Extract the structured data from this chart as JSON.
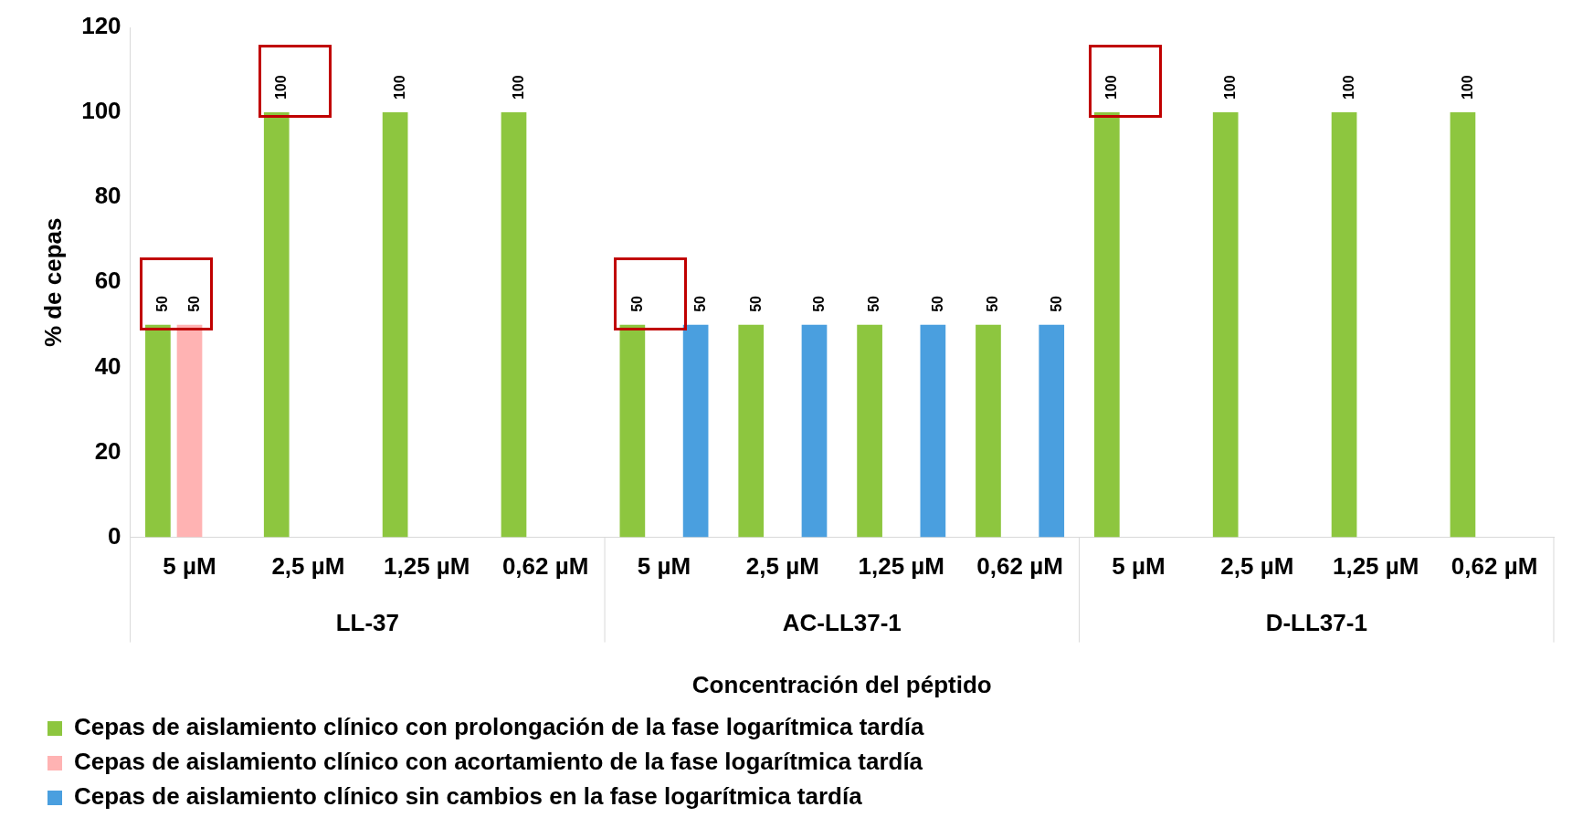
{
  "chart_data": {
    "type": "bar",
    "xlabel": "Concentración del péptido",
    "ylabel": "% de cepas",
    "categories": [
      "5 µM",
      "2,5 µM",
      "1,25 µM",
      "0,62 µM",
      "5 µM",
      "2,5 µM",
      "1,25 µM",
      "0,62 µM",
      "5 µM",
      "2,5 µM",
      "1,25 µM",
      "0,62 µM"
    ],
    "series": [
      {
        "name": "Cepas de aislamiento clínico con prolongación de la fase logarítmica tardía",
        "color": "#8dc63f",
        "values": [
          50,
          100,
          100,
          100,
          50,
          50,
          50,
          50,
          100,
          100,
          100,
          100
        ]
      },
      {
        "name": "Cepas de aislamiento clínico con acortamiento de la fase logarítmica tardía",
        "color": "#ffb3b3",
        "values": [
          50,
          null,
          null,
          null,
          null,
          null,
          null,
          null,
          null,
          null,
          null,
          null
        ]
      },
      {
        "name": "Cepas de aislamiento clínico sin cambios en la fase logarítmica tardía",
        "color": "#4a9fdf",
        "values": [
          null,
          null,
          null,
          null,
          50,
          50,
          50,
          50,
          null,
          null,
          null,
          null
        ]
      }
    ],
    "annotations": [
      "LL-37",
      "AC-LL37-1",
      "D-LL37-1"
    ],
    "ylim": [
      0,
      120
    ],
    "yticks": [
      0,
      20,
      40,
      60,
      80,
      100,
      120
    ],
    "grid": false,
    "legend": "bottom",
    "data_labels": true
  }
}
